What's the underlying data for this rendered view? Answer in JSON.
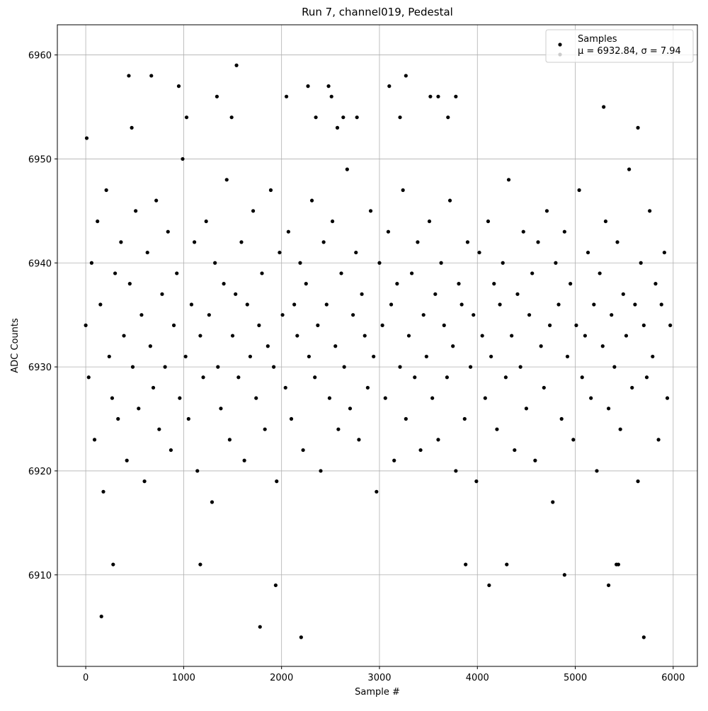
{
  "chart_data": {
    "type": "scatter",
    "title": "Run 7, channel019, Pedestal",
    "x_label": "Sample #",
    "y_label": "ADC Counts",
    "xlim": [
      -290,
      6247
    ],
    "ylim": [
      6901.2,
      6962.9
    ],
    "xticks": [
      0,
      1000,
      2000,
      3000,
      4000,
      5000,
      6000
    ],
    "yticks": [
      6910,
      6920,
      6930,
      6940,
      6950,
      6960
    ],
    "grid": true,
    "legend_position": "upper-right",
    "legend_note": "μ = 6932.84, σ = 7.94",
    "legend_note_color": "#cccccc",
    "series": [
      {
        "name": "Samples",
        "color": "#000000",
        "x": [
          0,
          30,
          60,
          90,
          120,
          150,
          180,
          210,
          240,
          270,
          300,
          330,
          360,
          390,
          420,
          450,
          480,
          510,
          540,
          570,
          600,
          630,
          660,
          690,
          720,
          750,
          780,
          810,
          840,
          870,
          900,
          930,
          960,
          990,
          1020,
          1050,
          1080,
          1110,
          1140,
          1170,
          1200,
          1230,
          1260,
          1290,
          1320,
          1350,
          1380,
          1410,
          1440,
          1470,
          1500,
          1530,
          1560,
          1590,
          1620,
          1650,
          1680,
          1710,
          1740,
          1770,
          1800,
          1830,
          1860,
          1890,
          1920,
          1950,
          1980,
          2010,
          2040,
          2070,
          2100,
          2130,
          2160,
          2190,
          2220,
          2250,
          2280,
          2310,
          2340,
          2370,
          2400,
          2430,
          2460,
          2490,
          2520,
          2550,
          2580,
          2610,
          2640,
          2670,
          2700,
          2730,
          2760,
          2790,
          2820,
          2850,
          2880,
          2910,
          2940,
          2970,
          3000,
          3030,
          3060,
          3090,
          3120,
          3150,
          3180,
          3210,
          3240,
          3270,
          3300,
          3330,
          3360,
          3390,
          3420,
          3450,
          3480,
          3510,
          3540,
          3570,
          3600,
          3630,
          3660,
          3690,
          3720,
          3750,
          3780,
          3810,
          3840,
          3870,
          3900,
          3930,
          3960,
          3990,
          4020,
          4050,
          4080,
          4110,
          4140,
          4170,
          4200,
          4230,
          4260,
          4290,
          4320,
          4350,
          4380,
          4410,
          4440,
          4470,
          4500,
          4530,
          4560,
          4590,
          4620,
          4650,
          4680,
          4710,
          4740,
          4770,
          4800,
          4830,
          4860,
          4890,
          4920,
          4950,
          4980,
          5010,
          5040,
          5070,
          5100,
          5130,
          5160,
          5190,
          5220,
          5250,
          5280,
          5310,
          5340,
          5370,
          5400,
          5430,
          5460,
          5490,
          5520,
          5550,
          5580,
          5610,
          5640,
          5670,
          5700,
          5730,
          5760,
          5790,
          5820,
          5850,
          5880,
          5910,
          5940,
          5970,
          160,
          1780,
          2200,
          5700,
          1940,
          4120,
          5340,
          4890,
          280,
          1170,
          3880,
          4300,
          5420,
          5440,
          1540,
          440,
          670,
          3270,
          1340,
          950,
          2270,
          2480,
          3100,
          5290,
          2050,
          2510,
          3520,
          3600,
          3780,
          1490,
          1030,
          470,
          5640,
          2350,
          2630,
          2770,
          3210,
          3700,
          10,
          2570
        ],
        "values": [
          6934,
          6929,
          6940,
          6923,
          6944,
          6936,
          6918,
          6947,
          6931,
          6927,
          6939,
          6925,
          6942,
          6933,
          6921,
          6938,
          6930,
          6945,
          6926,
          6935,
          6919,
          6941,
          6932,
          6928,
          6946,
          6924,
          6937,
          6930,
          6943,
          6922,
          6934,
          6939,
          6927,
          6950,
          6931,
          6925,
          6936,
          6942,
          6920,
          6933,
          6929,
          6944,
          6935,
          6917,
          6940,
          6930,
          6926,
          6938,
          6948,
          6923,
          6933,
          6937,
          6929,
          6942,
          6921,
          6936,
          6931,
          6945,
          6927,
          6934,
          6939,
          6924,
          6932,
          6947,
          6930,
          6919,
          6941,
          6935,
          6928,
          6943,
          6925,
          6936,
          6933,
          6940,
          6922,
          6938,
          6931,
          6946,
          6929,
          6934,
          6920,
          6942,
          6936,
          6927,
          6944,
          6932,
          6924,
          6939,
          6930,
          6949,
          6926,
          6935,
          6941,
          6923,
          6937,
          6933,
          6928,
          6945,
          6931,
          6918,
          6940,
          6934,
          6927,
          6943,
          6936,
          6921,
          6938,
          6930,
          6947,
          6925,
          6933,
          6939,
          6929,
          6942,
          6922,
          6935,
          6931,
          6944,
          6927,
          6937,
          6923,
          6940,
          6934,
          6929,
          6946,
          6932,
          6920,
          6938,
          6936,
          6925,
          6942,
          6930,
          6935,
          6919,
          6941,
          6933,
          6927,
          6944,
          6931,
          6938,
          6924,
          6936,
          6940,
          6929,
          6948,
          6933,
          6922,
          6937,
          6930,
          6943,
          6926,
          6935,
          6939,
          6921,
          6942,
          6932,
          6928,
          6945,
          6934,
          6917,
          6940,
          6936,
          6925,
          6943,
          6931,
          6938,
          6923,
          6934,
          6947,
          6929,
          6933,
          6941,
          6927,
          6936,
          6920,
          6939,
          6932,
          6944,
          6926,
          6935,
          6930,
          6942,
          6924,
          6937,
          6933,
          6949,
          6928,
          6936,
          6919,
          6940,
          6934,
          6929,
          6945,
          6931,
          6938,
          6923,
          6936,
          6941,
          6927,
          6934,
          6906,
          6905,
          6904,
          6904,
          6909,
          6909,
          6909,
          6910,
          6911,
          6911,
          6911,
          6911,
          6911,
          6911,
          6959,
          6958,
          6958,
          6958,
          6956,
          6957,
          6957,
          6957,
          6957,
          6955,
          6956,
          6956,
          6956,
          6956,
          6956,
          6954,
          6954,
          6953,
          6953,
          6954,
          6954,
          6954,
          6954,
          6954,
          6952,
          6953
        ]
      }
    ]
  }
}
